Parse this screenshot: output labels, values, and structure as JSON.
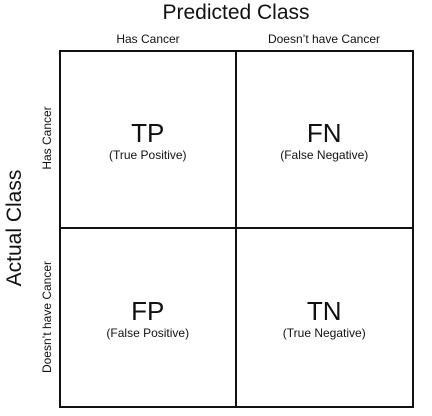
{
  "predicted_title": "Predicted Class",
  "actual_title": "Actual Class",
  "columns": [
    "Has Cancer",
    "Doesn’t have Cancer"
  ],
  "rows": [
    "Has Cancer",
    "Doesn’t have Cancer"
  ],
  "cells": [
    {
      "abbr": "TP",
      "full": "(True Positive)"
    },
    {
      "abbr": "FN",
      "full": "(False Negative)"
    },
    {
      "abbr": "FP",
      "full": "(False Positive)"
    },
    {
      "abbr": "TN",
      "full": "(True Negative)"
    }
  ]
}
